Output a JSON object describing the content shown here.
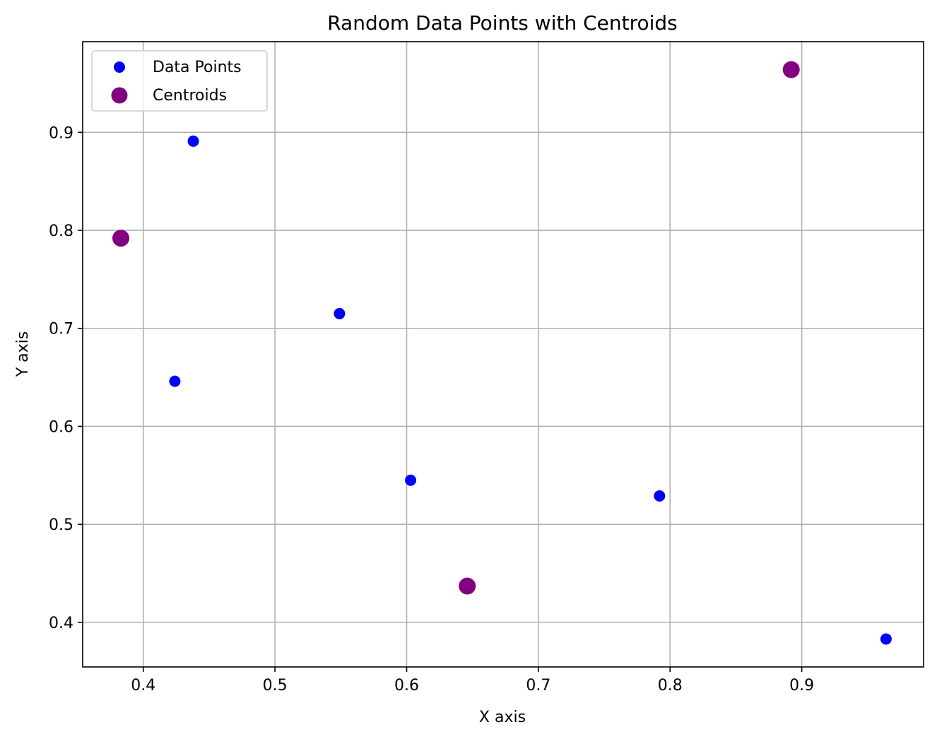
{
  "chart_data": {
    "type": "scatter",
    "title": "Random Data Points with Centroids",
    "xlabel": "X axis",
    "ylabel": "Y axis",
    "xlim": [
      0.354,
      0.9925
    ],
    "ylim": [
      0.3545,
      0.9925
    ],
    "xticks": [
      0.4,
      0.5,
      0.6,
      0.7,
      0.8,
      0.9
    ],
    "yticks": [
      0.4,
      0.5,
      0.6,
      0.7,
      0.8,
      0.9
    ],
    "grid": true,
    "legend_position": "upper-left",
    "series": [
      {
        "name": "Data Points",
        "color": "#0000ff",
        "marker_size": "small",
        "points": [
          {
            "x": 0.438,
            "y": 0.891
          },
          {
            "x": 0.549,
            "y": 0.715
          },
          {
            "x": 0.424,
            "y": 0.646
          },
          {
            "x": 0.603,
            "y": 0.545
          },
          {
            "x": 0.792,
            "y": 0.529
          },
          {
            "x": 0.964,
            "y": 0.383
          }
        ]
      },
      {
        "name": "Centroids",
        "color": "#800080",
        "marker_size": "large",
        "points": [
          {
            "x": 0.383,
            "y": 0.792
          },
          {
            "x": 0.646,
            "y": 0.437
          },
          {
            "x": 0.892,
            "y": 0.964
          }
        ]
      }
    ]
  }
}
